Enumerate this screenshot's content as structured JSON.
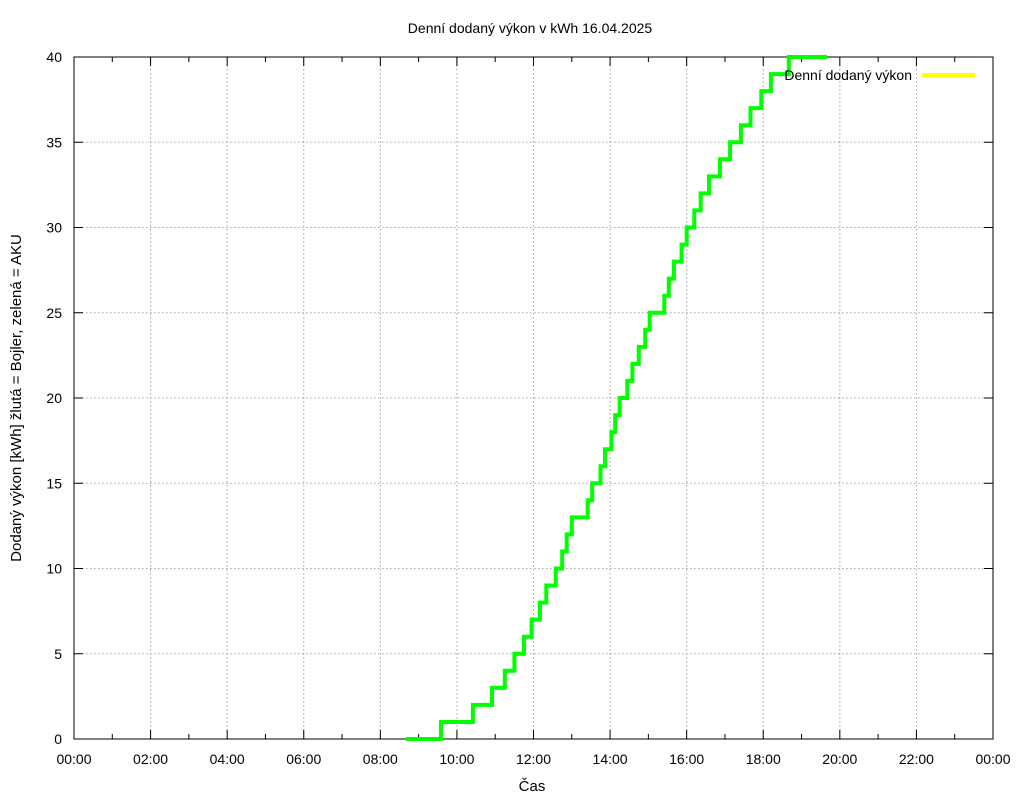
{
  "chart_data": {
    "type": "line",
    "title": "Denní dodaný výkon v kWh 16.04.2025",
    "xlabel": "Čas",
    "ylabel": "Dodaný výkon [kWh]  žlutá = Bojler, zelená = AKU",
    "x_ticks": [
      "00:00",
      "02:00",
      "04:00",
      "06:00",
      "08:00",
      "10:00",
      "12:00",
      "14:00",
      "16:00",
      "18:00",
      "20:00",
      "22:00",
      "00:00"
    ],
    "y_ticks": [
      "0",
      "5",
      "10",
      "15",
      "20",
      "25",
      "30",
      "35",
      "40"
    ],
    "xlim": [
      "00:00",
      "24:00"
    ],
    "ylim": [
      0,
      40
    ],
    "grid": true,
    "legend_position": "top-right",
    "series": [
      {
        "name": "Denní dodaný výkon",
        "color": "#ffff00",
        "line_style": "solid",
        "values": []
      },
      {
        "color": "#00ff00",
        "line_style": "step",
        "points": [
          [
            "08:40",
            0
          ],
          [
            "08:55",
            0
          ],
          [
            "09:20",
            0
          ],
          [
            "09:35",
            1
          ],
          [
            "10:25",
            2
          ],
          [
            "10:55",
            3
          ],
          [
            "11:15",
            4
          ],
          [
            "11:30",
            5
          ],
          [
            "11:45",
            6
          ],
          [
            "11:57",
            7
          ],
          [
            "12:10",
            8
          ],
          [
            "12:20",
            9
          ],
          [
            "12:35",
            10
          ],
          [
            "12:45",
            11
          ],
          [
            "12:52",
            12
          ],
          [
            "13:00",
            13
          ],
          [
            "13:25",
            14
          ],
          [
            "13:32",
            15
          ],
          [
            "13:45",
            16
          ],
          [
            "13:52",
            17
          ],
          [
            "14:02",
            18
          ],
          [
            "14:08",
            19
          ],
          [
            "14:15",
            20
          ],
          [
            "14:27",
            21
          ],
          [
            "14:35",
            22
          ],
          [
            "14:45",
            23
          ],
          [
            "14:55",
            24
          ],
          [
            "15:02",
            25
          ],
          [
            "15:25",
            26
          ],
          [
            "15:32",
            27
          ],
          [
            "15:40",
            28
          ],
          [
            "15:52",
            29
          ],
          [
            "16:00",
            30
          ],
          [
            "16:12",
            31
          ],
          [
            "16:22",
            32
          ],
          [
            "16:35",
            33
          ],
          [
            "16:52",
            34
          ],
          [
            "17:08",
            35
          ],
          [
            "17:25",
            36
          ],
          [
            "17:40",
            37
          ],
          [
            "17:57",
            38
          ],
          [
            "18:12",
            39
          ],
          [
            "18:40",
            40
          ],
          [
            "19:00",
            40
          ],
          [
            "19:40",
            40
          ]
        ]
      }
    ]
  }
}
